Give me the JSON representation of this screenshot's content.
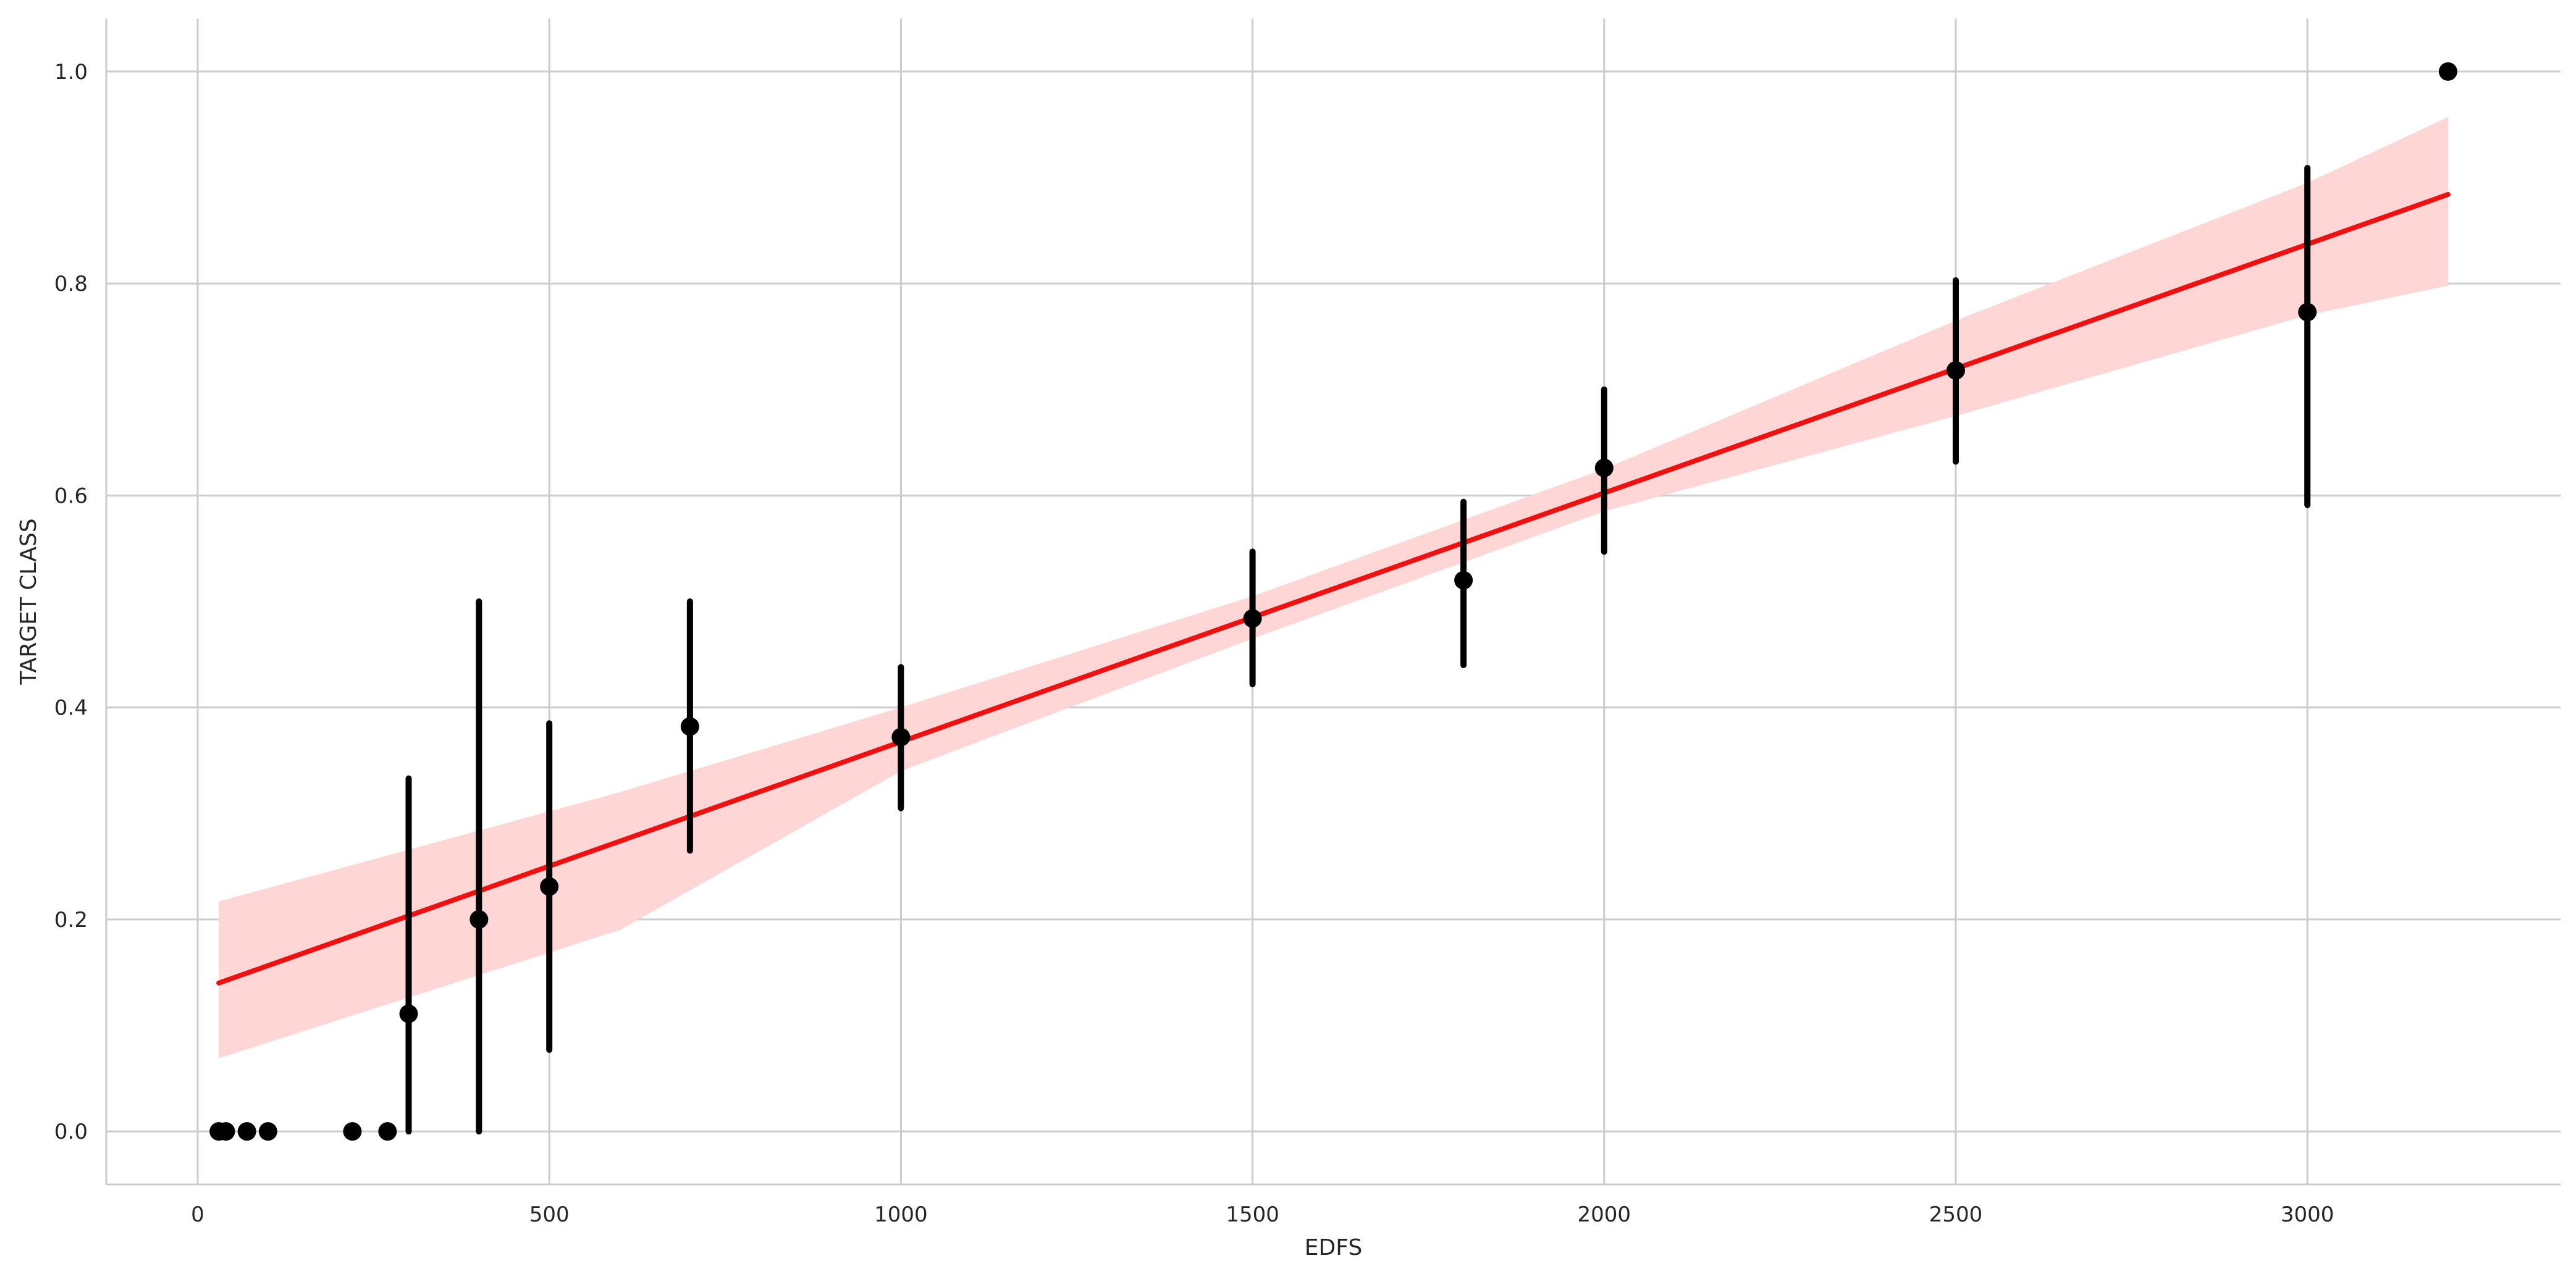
{
  "chart_data": {
    "type": "scatter",
    "title": "",
    "xlabel": "EDFS",
    "ylabel": "TARGET CLASS",
    "xlim": [
      -130,
      3360
    ],
    "ylim": [
      -0.05,
      1.05
    ],
    "x_ticks": [
      0,
      500,
      1000,
      1500,
      2000,
      2500,
      3000
    ],
    "x_tick_labels": [
      "0",
      "500",
      "1000",
      "1500",
      "2000",
      "2500",
      "3000"
    ],
    "y_ticks": [
      0.0,
      0.2,
      0.4,
      0.6,
      0.8,
      1.0
    ],
    "y_tick_labels": [
      "0.0",
      "0.2",
      "0.4",
      "0.6",
      "0.8",
      "1.0"
    ],
    "grid": true,
    "colors": {
      "points": "#000000",
      "fit_line": "#ee1111",
      "confidence_band": "#ffd6d6",
      "grid": "#cccccc",
      "spine": "#cccccc"
    },
    "series": [
      {
        "kind": "points_with_error_bars",
        "points": [
          {
            "x": 30,
            "y": 0.0
          },
          {
            "x": 40,
            "y": 0.0
          },
          {
            "x": 70,
            "y": 0.0
          },
          {
            "x": 100,
            "y": 0.0
          },
          {
            "x": 220,
            "y": 0.0
          },
          {
            "x": 270,
            "y": 0.0
          },
          {
            "x": 300,
            "y": 0.111,
            "err_low": 0.0,
            "err_high": 0.333
          },
          {
            "x": 400,
            "y": 0.2,
            "err_low": 0.0,
            "err_high": 0.5
          },
          {
            "x": 500,
            "y": 0.231,
            "err_low": 0.077,
            "err_high": 0.385
          },
          {
            "x": 700,
            "y": 0.382,
            "err_low": 0.265,
            "err_high": 0.5
          },
          {
            "x": 1000,
            "y": 0.372,
            "err_low": 0.305,
            "err_high": 0.438
          },
          {
            "x": 1500,
            "y": 0.484,
            "err_low": 0.422,
            "err_high": 0.547
          },
          {
            "x": 1800,
            "y": 0.52,
            "err_low": 0.44,
            "err_high": 0.594
          },
          {
            "x": 2000,
            "y": 0.626,
            "err_low": 0.547,
            "err_high": 0.7
          },
          {
            "x": 2500,
            "y": 0.718,
            "err_low": 0.632,
            "err_high": 0.803
          },
          {
            "x": 3000,
            "y": 0.773,
            "err_low": 0.591,
            "err_high": 0.909
          },
          {
            "x": 3200,
            "y": 1.0
          }
        ]
      },
      {
        "kind": "regression_line",
        "x": [
          30,
          3200
        ],
        "y": [
          0.14,
          0.884
        ]
      },
      {
        "kind": "confidence_band",
        "x": [
          30,
          600,
          1000,
          1500,
          2000,
          2500,
          3000,
          3200
        ],
        "upper": [
          0.217,
          0.32,
          0.4,
          0.505,
          0.625,
          0.765,
          0.895,
          0.957
        ],
        "lower": [
          0.069,
          0.19,
          0.34,
          0.465,
          0.585,
          0.675,
          0.77,
          0.798
        ]
      }
    ]
  }
}
